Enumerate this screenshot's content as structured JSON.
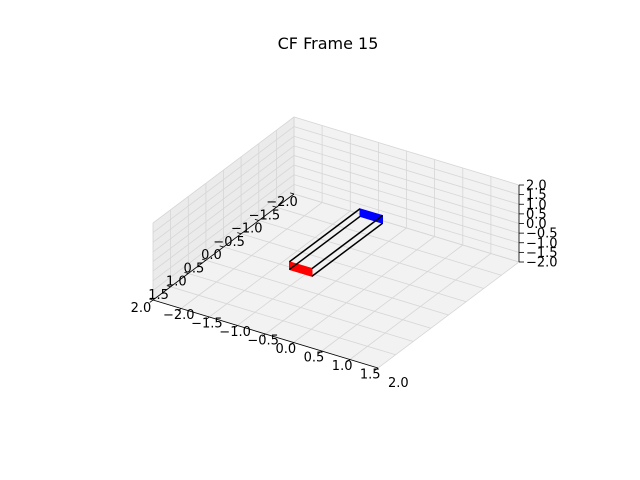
{
  "chart_data": {
    "type": "3d-line",
    "title": "CF Frame 15",
    "xlim": [
      -2.0,
      2.0
    ],
    "ylim": [
      -2.0,
      2.0
    ],
    "zlim": [
      -2.0,
      2.0
    ],
    "grid": true,
    "x_ticks": [
      "−2.0",
      "−1.5",
      "−1.0",
      "−0.5",
      "0.0",
      "0.5",
      "1.0",
      "1.5",
      "2.0"
    ],
    "y_ticks": [
      "−2.0",
      "−1.5",
      "−1.0",
      "−0.5",
      "0.0",
      "0.5",
      "1.0",
      "1.5",
      "2.0"
    ],
    "z_ticks": [
      "−2.0",
      "−1.5",
      "−1.0",
      "−0.5",
      "0.0",
      "0.5",
      "1.0",
      "1.5",
      "2.0"
    ],
    "x_tick_values": [
      -2.0,
      -1.5,
      -1.0,
      -0.5,
      0.0,
      0.5,
      1.0,
      1.5,
      2.0
    ],
    "y_tick_values": [
      -2.0,
      -1.5,
      -1.0,
      -0.5,
      0.0,
      0.5,
      1.0,
      1.5,
      2.0
    ],
    "z_tick_values": [
      -2.0,
      -1.5,
      -1.0,
      -0.5,
      0.0,
      0.5,
      1.0,
      1.5,
      2.0
    ],
    "colors": {
      "left_plate": "#0000ff",
      "right_plate": "#ff0000",
      "frame": "#000000"
    },
    "frame_lines": [
      {
        "from": [
          -1.0,
          -0.2,
          0.2
        ],
        "to": [
          1.0,
          -0.2,
          0.2
        ]
      },
      {
        "from": [
          -1.0,
          -0.2,
          -0.2
        ],
        "to": [
          1.0,
          -0.2,
          -0.2
        ]
      },
      {
        "from": [
          -1.0,
          0.2,
          0.2
        ],
        "to": [
          1.0,
          0.2,
          0.2
        ]
      },
      {
        "from": [
          -1.0,
          0.2,
          -0.2
        ],
        "to": [
          1.0,
          0.2,
          -0.2
        ]
      }
    ],
    "plates": [
      {
        "name": "left",
        "color": "#0000ff",
        "corners": [
          [
            -1.0,
            -0.2,
            0.2
          ],
          [
            -1.0,
            0.2,
            0.2
          ],
          [
            -1.0,
            0.2,
            -0.2
          ],
          [
            -1.0,
            -0.2,
            -0.2
          ]
        ]
      },
      {
        "name": "right",
        "color": "#ff0000",
        "corners": [
          [
            1.0,
            -0.2,
            0.2
          ],
          [
            1.0,
            0.2,
            0.2
          ],
          [
            1.0,
            0.2,
            -0.2
          ],
          [
            1.0,
            -0.2,
            -0.2
          ]
        ]
      }
    ]
  }
}
